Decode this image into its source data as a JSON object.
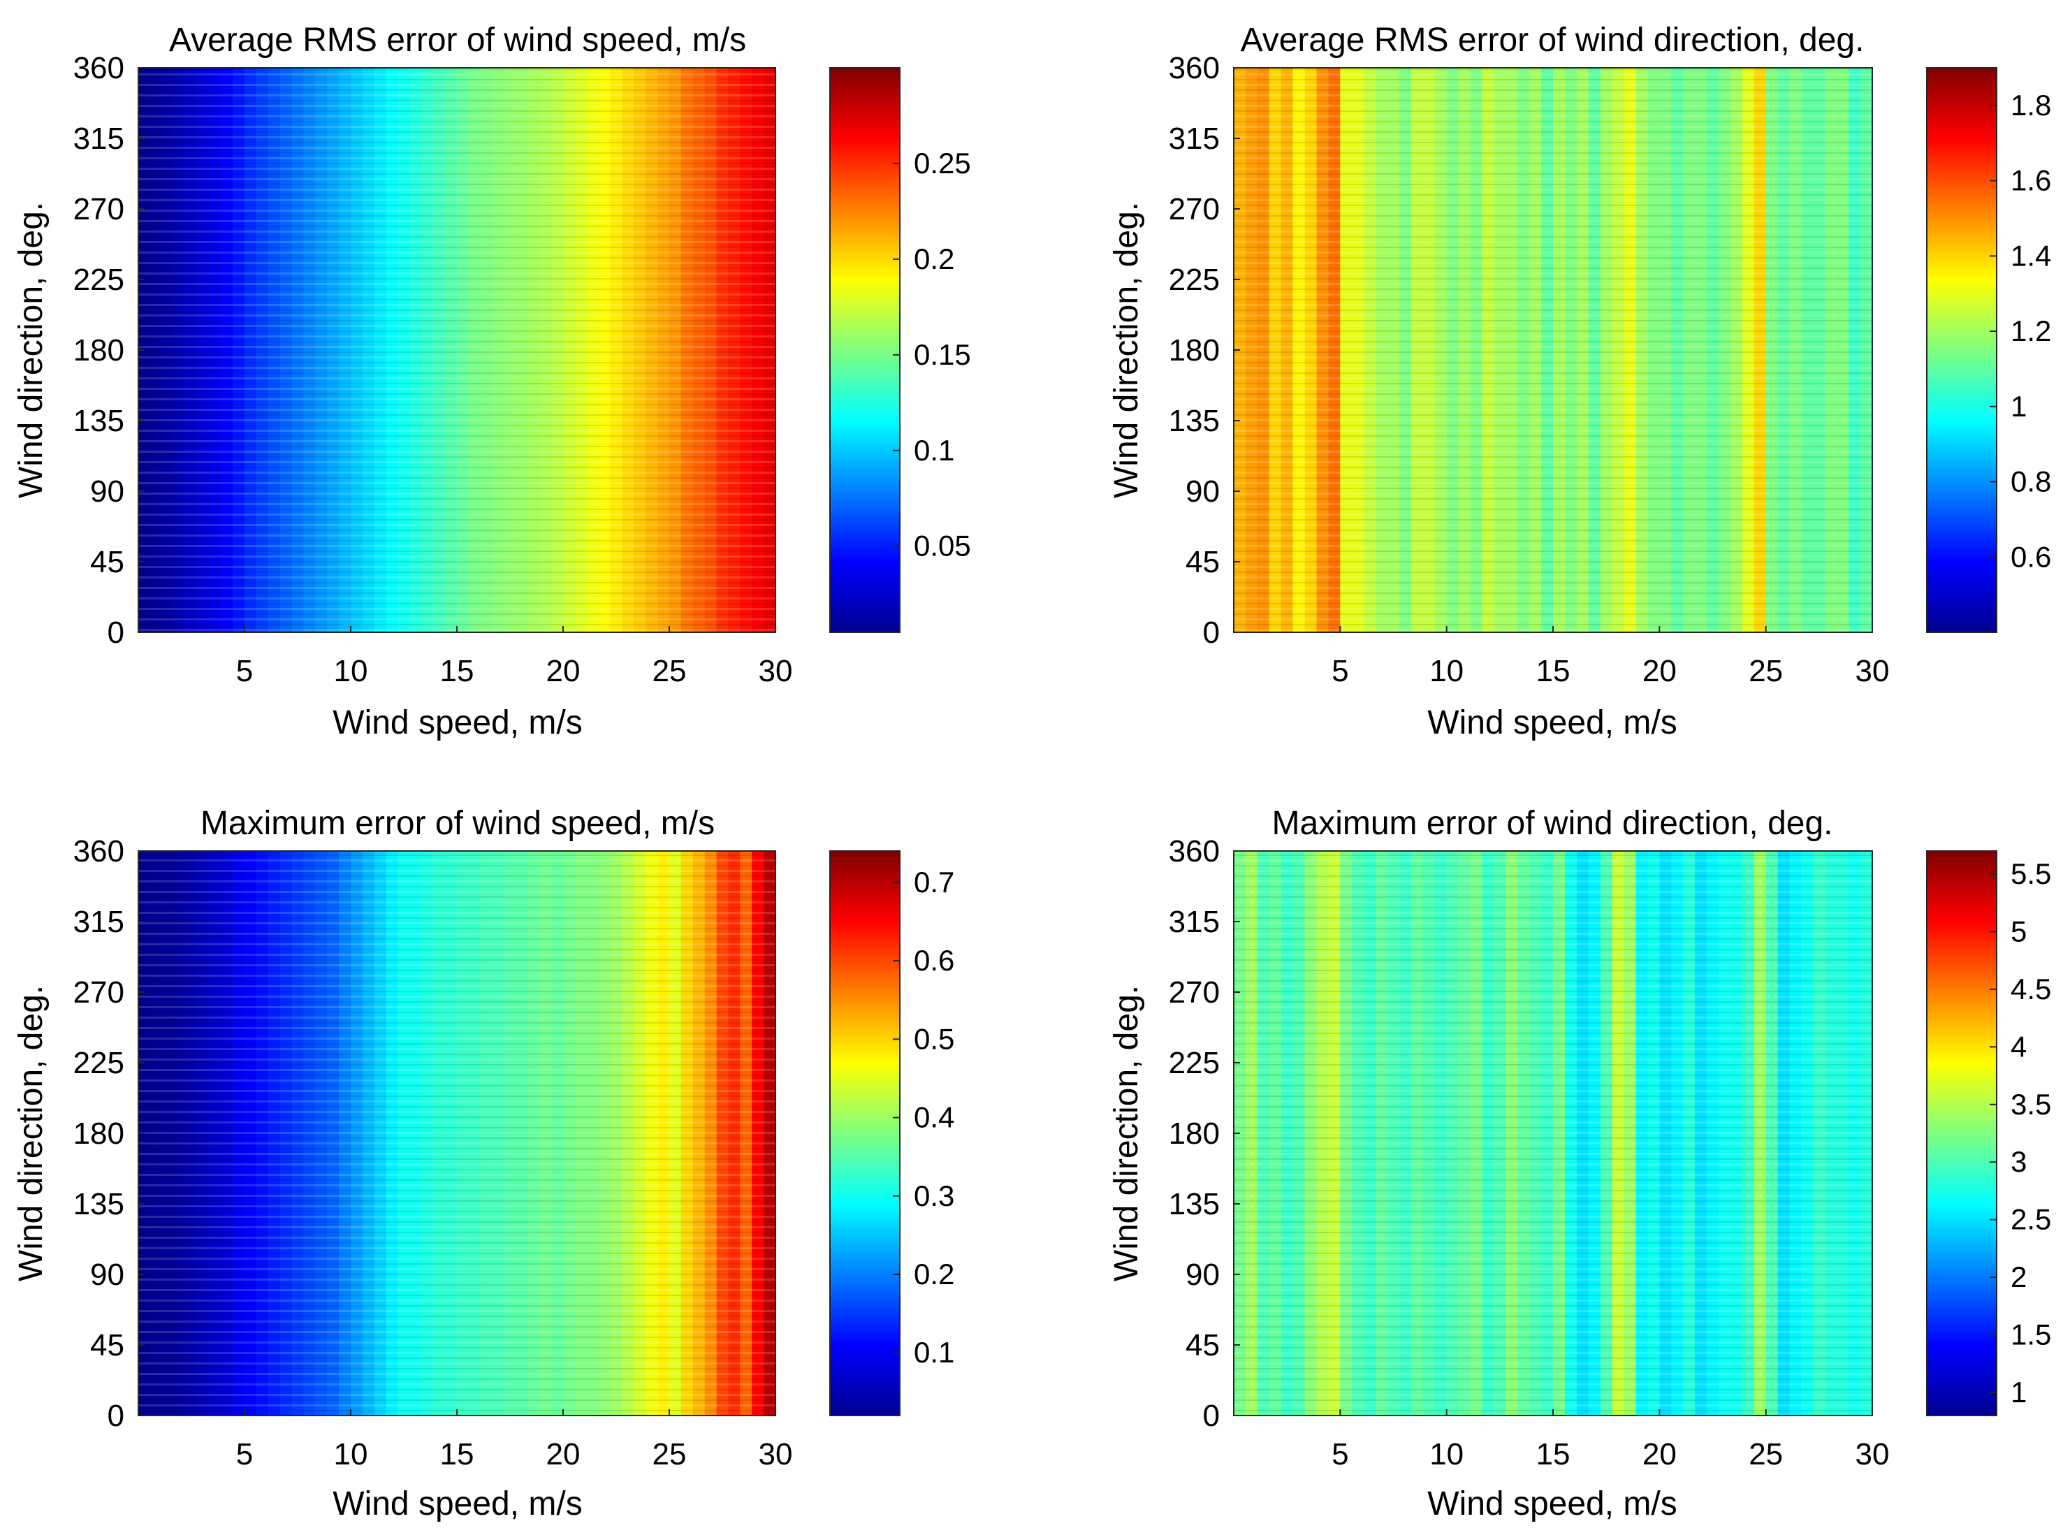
{
  "chart_data": [
    {
      "type": "heatmap",
      "title": "Average RMS error of wind speed, m/s",
      "xlabel": "Wind speed, m/s",
      "ylabel": "Wind direction, deg.",
      "xlim": [
        0,
        30
      ],
      "ylim": [
        0,
        360
      ],
      "xticks": [
        "5",
        "10",
        "15",
        "20",
        "25",
        "30"
      ],
      "yticks": [
        "0",
        "45",
        "90",
        "135",
        "180",
        "225",
        "270",
        "315",
        "360"
      ],
      "colorbar": {
        "min": 0.005,
        "max": 0.3,
        "ticks": [
          "0.05",
          "0.1",
          "0.15",
          "0.2",
          "0.25"
        ]
      },
      "column_values": [
        0.01,
        0.012,
        0.015,
        0.02,
        0.025,
        0.03,
        0.035,
        0.042,
        0.048,
        0.055,
        0.06,
        0.065,
        0.07,
        0.075,
        0.08,
        0.085,
        0.09,
        0.095,
        0.1,
        0.105,
        0.11,
        0.115,
        0.12,
        0.125,
        0.13,
        0.135,
        0.14,
        0.145,
        0.15,
        0.152,
        0.155,
        0.158,
        0.16,
        0.163,
        0.166,
        0.17,
        0.175,
        0.18,
        0.185,
        0.19,
        0.195,
        0.2,
        0.205,
        0.21,
        0.215,
        0.22,
        0.23,
        0.235,
        0.24,
        0.25,
        0.255,
        0.26,
        0.265,
        0.27
      ]
    },
    {
      "type": "heatmap",
      "title": "Average RMS error of wind direction, deg.",
      "xlabel": "Wind speed, m/s",
      "ylabel": "Wind direction, deg.",
      "xlim": [
        0,
        30
      ],
      "ylim": [
        0,
        360
      ],
      "xticks": [
        "5",
        "10",
        "15",
        "20",
        "25",
        "30"
      ],
      "yticks": [
        "0",
        "45",
        "90",
        "135",
        "180",
        "225",
        "270",
        "315",
        "360"
      ],
      "colorbar": {
        "min": 0.4,
        "max": 1.9,
        "ticks": [
          "0.6",
          "0.8",
          "1",
          "1.2",
          "1.4",
          "1.6",
          "1.8"
        ]
      },
      "column_values": [
        1.45,
        1.48,
        1.5,
        1.4,
        1.45,
        1.35,
        1.4,
        1.5,
        1.55,
        1.3,
        1.3,
        1.25,
        1.2,
        1.2,
        1.15,
        1.25,
        1.25,
        1.2,
        1.15,
        1.2,
        1.15,
        1.25,
        1.2,
        1.2,
        1.15,
        1.2,
        1.1,
        1.2,
        1.15,
        1.2,
        1.1,
        1.2,
        1.25,
        1.3,
        1.2,
        1.15,
        1.15,
        1.1,
        1.15,
        1.15,
        1.1,
        1.15,
        1.2,
        1.3,
        1.4,
        1.15,
        1.1,
        1.15,
        1.1,
        1.1,
        1.15,
        1.15,
        1.05,
        1.1
      ]
    },
    {
      "type": "heatmap",
      "title": "Maximum error of wind speed, m/s",
      "xlabel": "Wind speed, m/s",
      "ylabel": "Wind direction, deg.",
      "xlim": [
        0,
        30
      ],
      "ylim": [
        0,
        360
      ],
      "xticks": [
        "5",
        "10",
        "15",
        "20",
        "25",
        "30"
      ],
      "yticks": [
        "0",
        "45",
        "90",
        "135",
        "180",
        "225",
        "270",
        "315",
        "360"
      ],
      "colorbar": {
        "min": 0.02,
        "max": 0.74,
        "ticks": [
          "0.1",
          "0.2",
          "0.3",
          "0.4",
          "0.5",
          "0.6",
          "0.7"
        ]
      },
      "column_values": [
        0.03,
        0.032,
        0.035,
        0.04,
        0.05,
        0.06,
        0.07,
        0.08,
        0.1,
        0.11,
        0.12,
        0.13,
        0.14,
        0.15,
        0.16,
        0.17,
        0.18,
        0.2,
        0.22,
        0.24,
        0.26,
        0.28,
        0.3,
        0.3,
        0.31,
        0.32,
        0.32,
        0.33,
        0.33,
        0.34,
        0.34,
        0.35,
        0.35,
        0.36,
        0.37,
        0.36,
        0.37,
        0.38,
        0.38,
        0.39,
        0.4,
        0.42,
        0.44,
        0.46,
        0.48,
        0.45,
        0.5,
        0.52,
        0.55,
        0.6,
        0.62,
        0.58,
        0.65,
        0.7
      ]
    },
    {
      "type": "heatmap",
      "title": "Maximum error of wind direction, deg.",
      "xlabel": "Wind speed, m/s",
      "ylabel": "Wind direction, deg.",
      "xlim": [
        0,
        30
      ],
      "ylim": [
        0,
        360
      ],
      "xticks": [
        "5",
        "10",
        "15",
        "20",
        "25",
        "30"
      ],
      "yticks": [
        "0",
        "45",
        "90",
        "135",
        "180",
        "225",
        "270",
        "315",
        "360"
      ],
      "colorbar": {
        "min": 0.8,
        "max": 5.7,
        "ticks": [
          "1",
          "1.5",
          "2",
          "2.5",
          "3",
          "3.5",
          "4",
          "4.5",
          "5",
          "5.5"
        ]
      },
      "column_values": [
        3.2,
        3.4,
        3.0,
        3.1,
        2.9,
        3.0,
        3.3,
        3.5,
        3.6,
        3.2,
        3.0,
        2.9,
        3.1,
        3.0,
        2.9,
        3.1,
        3.0,
        2.9,
        3.0,
        3.1,
        3.2,
        2.9,
        3.0,
        3.3,
        3.1,
        3.0,
        2.9,
        3.2,
        2.7,
        2.5,
        2.6,
        3.0,
        3.6,
        3.4,
        2.6,
        2.7,
        2.5,
        2.6,
        2.8,
        2.5,
        2.6,
        2.7,
        2.7,
        2.9,
        3.4,
        3.0,
        2.5,
        2.6,
        2.7,
        2.9,
        2.8,
        2.8,
        2.7,
        2.8
      ]
    }
  ]
}
